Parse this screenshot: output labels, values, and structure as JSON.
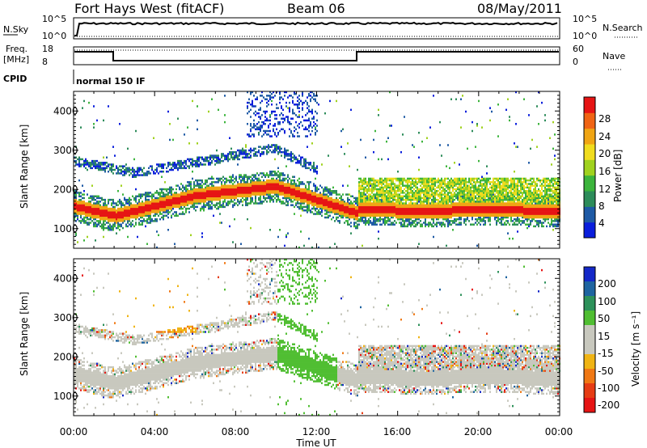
{
  "header": {
    "radar": "Fort Hays West (fitACF)",
    "beam": "Beam 06",
    "date": "08/May/2011"
  },
  "top_panels": {
    "noise": {
      "left_label": "N.Sky",
      "right_label": "N.Search",
      "left_ticks": [
        "10^5",
        "10^0"
      ],
      "right_ticks": [
        "10^5",
        "10^0"
      ]
    },
    "freq": {
      "left_label_1": "Freq.",
      "left_label_2": "[MHz]",
      "right_label": "Nave",
      "left_ticks": [
        "18",
        "8"
      ],
      "right_ticks": [
        "60",
        "0"
      ]
    },
    "cpid": {
      "label": "CPID",
      "value": "normal 150 IF"
    }
  },
  "colors": {
    "power_scale": [
      "#0a1edc",
      "#1e5aa5",
      "#2d8c5a",
      "#3cb43c",
      "#a0d21e",
      "#f0dc1e",
      "#f0a514",
      "#f06414",
      "#e61414"
    ],
    "velocity_scale": [
      "#1428c8",
      "#1e64a0",
      "#2d915a",
      "#50be32",
      "#c8c8be",
      "#c8c8be",
      "#f0b414",
      "#f07814",
      "#e63c14",
      "#e61414"
    ]
  },
  "chart_data": [
    {
      "type": "heatmap",
      "panel": "power",
      "ylabel": "Slant Range [km]",
      "yticks": [
        "1000",
        "2000",
        "3000",
        "4000"
      ],
      "ylim": [
        500,
        4500
      ],
      "xlim": [
        "00:00",
        "24:00"
      ],
      "colorbar_label": "Power [dB]",
      "colorbar_ticks": [
        "4",
        "8",
        "12",
        "16",
        "20",
        "24",
        "28"
      ],
      "colorbar_range": [
        0,
        32
      ]
    },
    {
      "type": "heatmap",
      "panel": "velocity",
      "ylabel": "Slant Range [km]",
      "yticks": [
        "1000",
        "2000",
        "3000",
        "4000"
      ],
      "ylim": [
        500,
        4500
      ],
      "xlabel": "Time UT",
      "xticks": [
        "00:00",
        "04:00",
        "08:00",
        "12:00",
        "16:00",
        "20:00",
        "00:00"
      ],
      "colorbar_label": "Velocity [m s⁻¹]",
      "colorbar_ticks": [
        "200",
        "100",
        "50",
        "15",
        "-15",
        "-50",
        "-100",
        "-200"
      ]
    }
  ]
}
